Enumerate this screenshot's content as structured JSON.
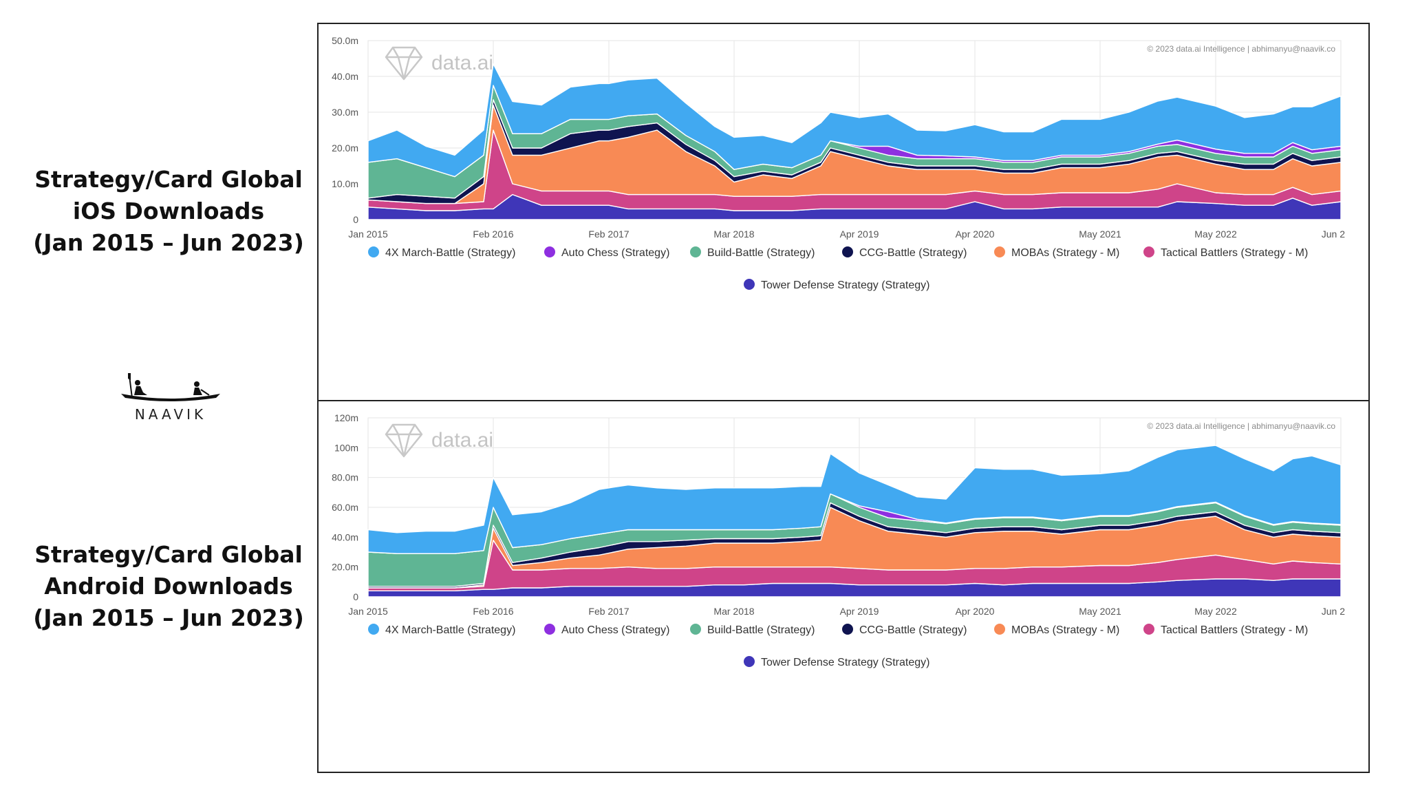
{
  "headings": {
    "ios": [
      "Strategy/Card Global",
      "iOS Downloads",
      "(Jan 2015 – Jun 2023)"
    ],
    "android": [
      "Strategy/Card Global",
      "Android Downloads",
      "(Jan 2015 – Jun 2023)"
    ]
  },
  "logo": {
    "text": "NAAVIK",
    "icon": "canoe-icon"
  },
  "watermark": {
    "brand": "data.ai",
    "icon": "diamond-icon"
  },
  "colors": {
    "4X March-Battle (Strategy)": "#41a9f1",
    "Auto Chess (Strategy)": "#8e2fe0",
    "Build-Battle (Strategy)": "#5fb594",
    "CCG-Battle (Strategy)": "#0f1450",
    "MOBAs (Strategy - M)": "#f88a55",
    "Tactical Battlers (Strategy - M)": "#cf4489",
    "Tower Defense Strategy (Strategy)": "#3f36b8"
  },
  "chart_data": [
    {
      "type": "area",
      "stacked": true,
      "panel": "ios",
      "copyright": "© 2023 data.ai Intelligence | abhimanyu@naavik.co",
      "x": [
        "2015-01",
        "2015-04",
        "2015-07",
        "2015-10",
        "2016-01",
        "2016-02",
        "2016-04",
        "2016-07",
        "2016-10",
        "2017-01",
        "2017-02",
        "2017-04",
        "2017-07",
        "2017-10",
        "2018-01",
        "2018-03",
        "2018-06",
        "2018-09",
        "2018-12",
        "2019-01",
        "2019-04",
        "2019-07",
        "2019-10",
        "2020-01",
        "2020-04",
        "2020-07",
        "2020-10",
        "2021-01",
        "2021-05",
        "2021-08",
        "2021-11",
        "2022-01",
        "2022-05",
        "2022-08",
        "2022-11",
        "2023-01",
        "2023-03",
        "2023-06"
      ],
      "x_ticks": [
        "Jan 2015",
        "Feb 2016",
        "Feb 2017",
        "Mar 2018",
        "Apr 2019",
        "Apr 2020",
        "May 2021",
        "May 2022",
        "Jun 2"
      ],
      "x_tick_dates": [
        "2015-01",
        "2016-02",
        "2017-02",
        "2018-03",
        "2019-04",
        "2020-04",
        "2021-05",
        "2022-05",
        "2023-06"
      ],
      "y_ticks": [
        "0",
        "10.0m",
        "20.0m",
        "30.0m",
        "40.0m",
        "50.0m"
      ],
      "ylim": [
        0,
        50
      ],
      "grid": true,
      "legend_position": "bottom",
      "series": [
        {
          "name": "Tower Defense Strategy (Strategy)",
          "values": [
            3.5,
            3,
            2.5,
            2.5,
            3,
            3,
            7,
            4,
            4,
            4,
            4,
            3,
            3,
            3,
            3,
            2.5,
            2.5,
            2.5,
            3,
            3,
            3,
            3,
            3,
            3,
            5,
            3,
            3,
            3.5,
            3.5,
            3.5,
            3.5,
            5,
            4.5,
            4,
            4,
            6,
            4,
            5
          ]
        },
        {
          "name": "Tactical Battlers (Strategy - M)",
          "values": [
            2,
            2,
            2,
            2,
            2,
            22,
            3,
            4,
            4,
            4,
            4,
            4,
            4,
            4,
            4,
            4,
            4,
            4,
            4,
            4,
            4,
            4,
            4,
            4,
            3,
            4,
            4,
            4,
            4,
            4,
            5,
            5,
            3,
            3,
            3,
            3,
            3,
            3
          ]
        },
        {
          "name": "MOBAs (Strategy - M)",
          "values": [
            0,
            0,
            0,
            0,
            5,
            7,
            8,
            10,
            12,
            14,
            14,
            16,
            18,
            12,
            8,
            4,
            6,
            5,
            8,
            12,
            10,
            8,
            7,
            7,
            6,
            6,
            6,
            7,
            7,
            8,
            9,
            8,
            8,
            7,
            7,
            8,
            8,
            8
          ]
        },
        {
          "name": "CCG-Battle (Strategy)",
          "values": [
            0.5,
            2,
            2,
            1.5,
            2,
            1.5,
            2,
            2,
            4,
            3,
            3,
            3,
            2,
            2,
            1.5,
            1.5,
            1,
            1,
            1,
            1,
            1,
            1,
            1,
            1,
            1,
            1,
            1,
            1,
            1,
            1,
            1,
            1,
            1,
            1.5,
            1.5,
            1.5,
            1.5,
            1.5
          ]
        },
        {
          "name": "Build-Battle (Strategy)",
          "values": [
            10,
            10,
            8,
            6,
            6,
            4,
            4,
            4,
            4,
            3,
            3,
            3,
            2.5,
            2.5,
            2.5,
            2,
            2,
            2,
            2,
            2,
            2,
            2,
            2,
            2,
            2,
            2,
            2,
            2,
            2,
            2,
            2,
            2,
            2,
            2,
            2,
            2,
            2,
            2
          ]
        },
        {
          "name": "Auto Chess (Strategy)",
          "values": [
            0,
            0,
            0,
            0,
            0,
            0,
            0,
            0,
            0,
            0,
            0,
            0,
            0,
            0,
            0,
            0,
            0,
            0,
            0,
            0,
            0.5,
            2.5,
            1,
            0.8,
            0.5,
            0.5,
            0.5,
            0.5,
            0.5,
            0.5,
            0.6,
            1.2,
            1.2,
            1,
            1,
            1,
            1,
            1
          ]
        },
        {
          "name": "4X March-Battle (Strategy)",
          "values": [
            6,
            8,
            6,
            6,
            7,
            6,
            9,
            8,
            9,
            10,
            10,
            10,
            10,
            9,
            7,
            9,
            8,
            7,
            9,
            8,
            8,
            9,
            7,
            7,
            9,
            8,
            8,
            10,
            10,
            11,
            12,
            12,
            12,
            10,
            11,
            10,
            12,
            14
          ]
        }
      ]
    },
    {
      "type": "area",
      "stacked": true,
      "panel": "android",
      "copyright": "© 2023 data.ai Intelligence | abhimanyu@naavik.co",
      "x": [
        "2015-01",
        "2015-04",
        "2015-07",
        "2015-10",
        "2016-01",
        "2016-02",
        "2016-04",
        "2016-07",
        "2016-10",
        "2017-01",
        "2017-04",
        "2017-07",
        "2017-10",
        "2018-01",
        "2018-04",
        "2018-07",
        "2018-10",
        "2018-12",
        "2019-01",
        "2019-04",
        "2019-07",
        "2019-10",
        "2020-01",
        "2020-04",
        "2020-07",
        "2020-10",
        "2021-01",
        "2021-05",
        "2021-08",
        "2021-11",
        "2022-01",
        "2022-05",
        "2022-08",
        "2022-11",
        "2023-01",
        "2023-03",
        "2023-06"
      ],
      "x_ticks": [
        "Jan 2015",
        "Feb 2016",
        "Feb 2017",
        "Mar 2018",
        "Apr 2019",
        "Apr 2020",
        "May 2021",
        "May 2022",
        "Jun 2"
      ],
      "x_tick_dates": [
        "2015-01",
        "2016-02",
        "2017-02",
        "2018-03",
        "2019-04",
        "2020-04",
        "2021-05",
        "2022-05",
        "2023-06"
      ],
      "y_ticks": [
        "0",
        "20.0m",
        "40.0m",
        "60.0m",
        "80.0m",
        "100m",
        "120m"
      ],
      "ylim": [
        0,
        120
      ],
      "grid": true,
      "legend_position": "bottom",
      "series": [
        {
          "name": "Tower Defense Strategy (Strategy)",
          "values": [
            4,
            4,
            4,
            4,
            5,
            5,
            6,
            6,
            7,
            7,
            7,
            7,
            7,
            8,
            8,
            9,
            9,
            9,
            9,
            8,
            8,
            8,
            8,
            9,
            8,
            9,
            9,
            9,
            9,
            10,
            11,
            12,
            12,
            11,
            12,
            12,
            12
          ]
        },
        {
          "name": "Tactical Battlers (Strategy - M)",
          "values": [
            2,
            2,
            2,
            2,
            2,
            33,
            12,
            12,
            12,
            12,
            13,
            12,
            12,
            12,
            12,
            11,
            11,
            11,
            11,
            11,
            10,
            10,
            10,
            10,
            11,
            11,
            11,
            12,
            12,
            13,
            14,
            16,
            13,
            11,
            12,
            11,
            10
          ]
        },
        {
          "name": "MOBAs (Strategy - M)",
          "values": [
            0,
            0,
            0,
            0,
            1,
            8,
            3,
            5,
            7,
            9,
            12,
            14,
            15,
            16,
            16,
            16,
            17,
            18,
            40,
            32,
            26,
            24,
            22,
            24,
            25,
            24,
            22,
            24,
            24,
            25,
            26,
            26,
            20,
            18,
            18,
            18,
            18
          ]
        },
        {
          "name": "CCG-Battle (Strategy)",
          "values": [
            1,
            1,
            1,
            1,
            1,
            2,
            2,
            3,
            4,
            5,
            5,
            4,
            4,
            3,
            3,
            3,
            3,
            3,
            3,
            3,
            3,
            3,
            3,
            3,
            3,
            3,
            3,
            3,
            3,
            3,
            3,
            3,
            3,
            3,
            3,
            3,
            3
          ]
        },
        {
          "name": "Build-Battle (Strategy)",
          "values": [
            23,
            22,
            22,
            22,
            22,
            12,
            10,
            9,
            9,
            9,
            8,
            8,
            7,
            6,
            6,
            6,
            6,
            6,
            6,
            6,
            6,
            6,
            6,
            6,
            6,
            6,
            6,
            6,
            6,
            6,
            6,
            6,
            6,
            5,
            5,
            5,
            5
          ]
        },
        {
          "name": "Auto Chess (Strategy)",
          "values": [
            0,
            0,
            0,
            0,
            0,
            0,
            0,
            0,
            0,
            0,
            0,
            0,
            0,
            0,
            0,
            0,
            0,
            0,
            0,
            1,
            4,
            1,
            0.5,
            0.5,
            0.5,
            0.5,
            0.5,
            0.5,
            0.5,
            0.5,
            0.5,
            0.5,
            0.5,
            0.5,
            0.5,
            0.5,
            0.5
          ]
        },
        {
          "name": "4X March-Battle (Strategy)",
          "values": [
            15,
            14,
            15,
            15,
            17,
            20,
            22,
            22,
            24,
            30,
            30,
            28,
            27,
            28,
            28,
            28,
            28,
            27,
            27,
            22,
            18,
            15,
            16,
            34,
            32,
            32,
            30,
            28,
            30,
            36,
            38,
            38,
            38,
            36,
            42,
            45,
            40
          ]
        }
      ]
    }
  ]
}
